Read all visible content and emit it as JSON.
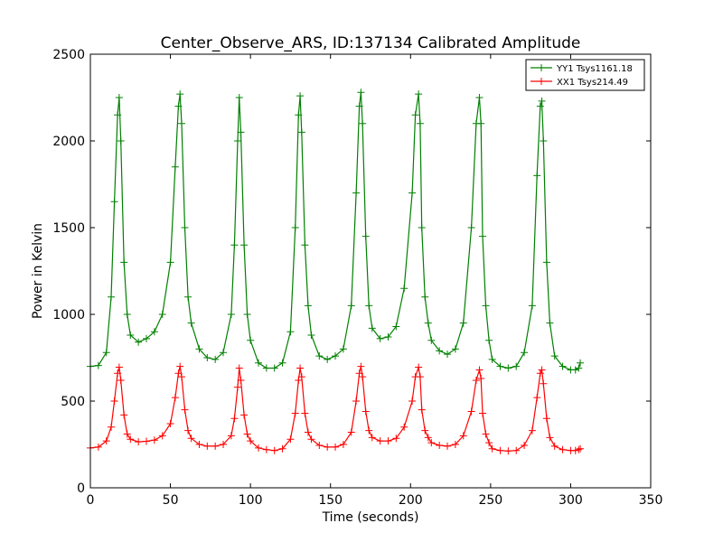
{
  "chart_data": {
    "type": "line",
    "title": "Center_Observe_ARS, ID:137134 Calibrated Amplitude",
    "xlabel": "Time (seconds)",
    "ylabel": "Power in Kelvin",
    "xlim": [
      0,
      350
    ],
    "ylim": [
      0,
      2500
    ],
    "x_ticks": [
      0,
      50,
      100,
      150,
      200,
      250,
      300,
      350
    ],
    "y_ticks": [
      0,
      500,
      1000,
      1500,
      2000,
      2500
    ],
    "grid": false,
    "legend_position": "top-right",
    "marker": "plus",
    "series": [
      {
        "name": "YY1 Tsys1161.18",
        "color": "#008000",
        "x": [
          0,
          5,
          10,
          13,
          15,
          17,
          18,
          19,
          21,
          23,
          25,
          30,
          35,
          40,
          45,
          50,
          53,
          55,
          56,
          57,
          59,
          61,
          63,
          68,
          73,
          78,
          83,
          88,
          90,
          92,
          93,
          94,
          96,
          98,
          100,
          105,
          110,
          115,
          120,
          125,
          128,
          130,
          131,
          132,
          134,
          136,
          138,
          143,
          148,
          153,
          158,
          163,
          166,
          168,
          169,
          170,
          172,
          174,
          176,
          181,
          186,
          191,
          196,
          201,
          203,
          205,
          206,
          207,
          209,
          211,
          213,
          218,
          223,
          228,
          233,
          238,
          241,
          243,
          244,
          245,
          247,
          249,
          251,
          256,
          261,
          266,
          271,
          276,
          279,
          281,
          282,
          283,
          285,
          287,
          290,
          295,
          300,
          303,
          305,
          306
        ],
        "y": [
          700,
          705,
          780,
          1100,
          1650,
          2150,
          2250,
          2000,
          1300,
          1000,
          880,
          840,
          860,
          900,
          1000,
          1300,
          1850,
          2200,
          2270,
          2100,
          1500,
          1100,
          950,
          800,
          750,
          740,
          780,
          1000,
          1400,
          2000,
          2250,
          2050,
          1400,
          1000,
          850,
          720,
          690,
          690,
          720,
          900,
          1500,
          2150,
          2260,
          2050,
          1400,
          1050,
          880,
          760,
          740,
          760,
          800,
          1050,
          1700,
          2200,
          2280,
          2100,
          1450,
          1050,
          920,
          860,
          870,
          930,
          1150,
          1700,
          2150,
          2270,
          2100,
          1500,
          1100,
          950,
          850,
          790,
          770,
          800,
          950,
          1500,
          2100,
          2250,
          2100,
          1450,
          1050,
          850,
          740,
          700,
          690,
          700,
          780,
          1050,
          1800,
          2200,
          2230,
          2000,
          1300,
          950,
          760,
          700,
          680,
          680,
          690,
          720
        ]
      },
      {
        "name": "XX1 Tsys214.49",
        "color": "#ff0000",
        "x": [
          0,
          5,
          10,
          13,
          15,
          17,
          18,
          19,
          21,
          23,
          25,
          30,
          35,
          40,
          45,
          50,
          53,
          55,
          56,
          57,
          59,
          61,
          63,
          68,
          73,
          78,
          83,
          88,
          90,
          92,
          93,
          94,
          96,
          98,
          100,
          105,
          110,
          115,
          120,
          125,
          128,
          130,
          131,
          132,
          134,
          136,
          138,
          143,
          148,
          153,
          158,
          163,
          166,
          168,
          169,
          170,
          172,
          174,
          176,
          181,
          186,
          191,
          196,
          201,
          203,
          205,
          206,
          207,
          209,
          211,
          213,
          218,
          223,
          228,
          233,
          238,
          241,
          243,
          244,
          245,
          247,
          249,
          251,
          256,
          261,
          266,
          271,
          276,
          279,
          281,
          282,
          283,
          285,
          287,
          290,
          295,
          300,
          303,
          305,
          306
        ],
        "y": [
          230,
          235,
          270,
          350,
          500,
          660,
          695,
          620,
          420,
          310,
          280,
          265,
          268,
          275,
          300,
          370,
          520,
          660,
          700,
          640,
          450,
          330,
          285,
          250,
          240,
          240,
          250,
          300,
          400,
          580,
          690,
          620,
          420,
          310,
          270,
          230,
          220,
          215,
          225,
          280,
          430,
          620,
          690,
          640,
          430,
          320,
          280,
          245,
          235,
          235,
          250,
          320,
          500,
          660,
          700,
          640,
          440,
          330,
          290,
          270,
          270,
          285,
          350,
          500,
          640,
          695,
          640,
          450,
          330,
          290,
          260,
          245,
          240,
          250,
          300,
          440,
          620,
          680,
          630,
          430,
          310,
          260,
          225,
          215,
          212,
          215,
          245,
          330,
          520,
          660,
          680,
          600,
          400,
          290,
          240,
          220,
          215,
          215,
          220,
          225
        ]
      }
    ]
  }
}
